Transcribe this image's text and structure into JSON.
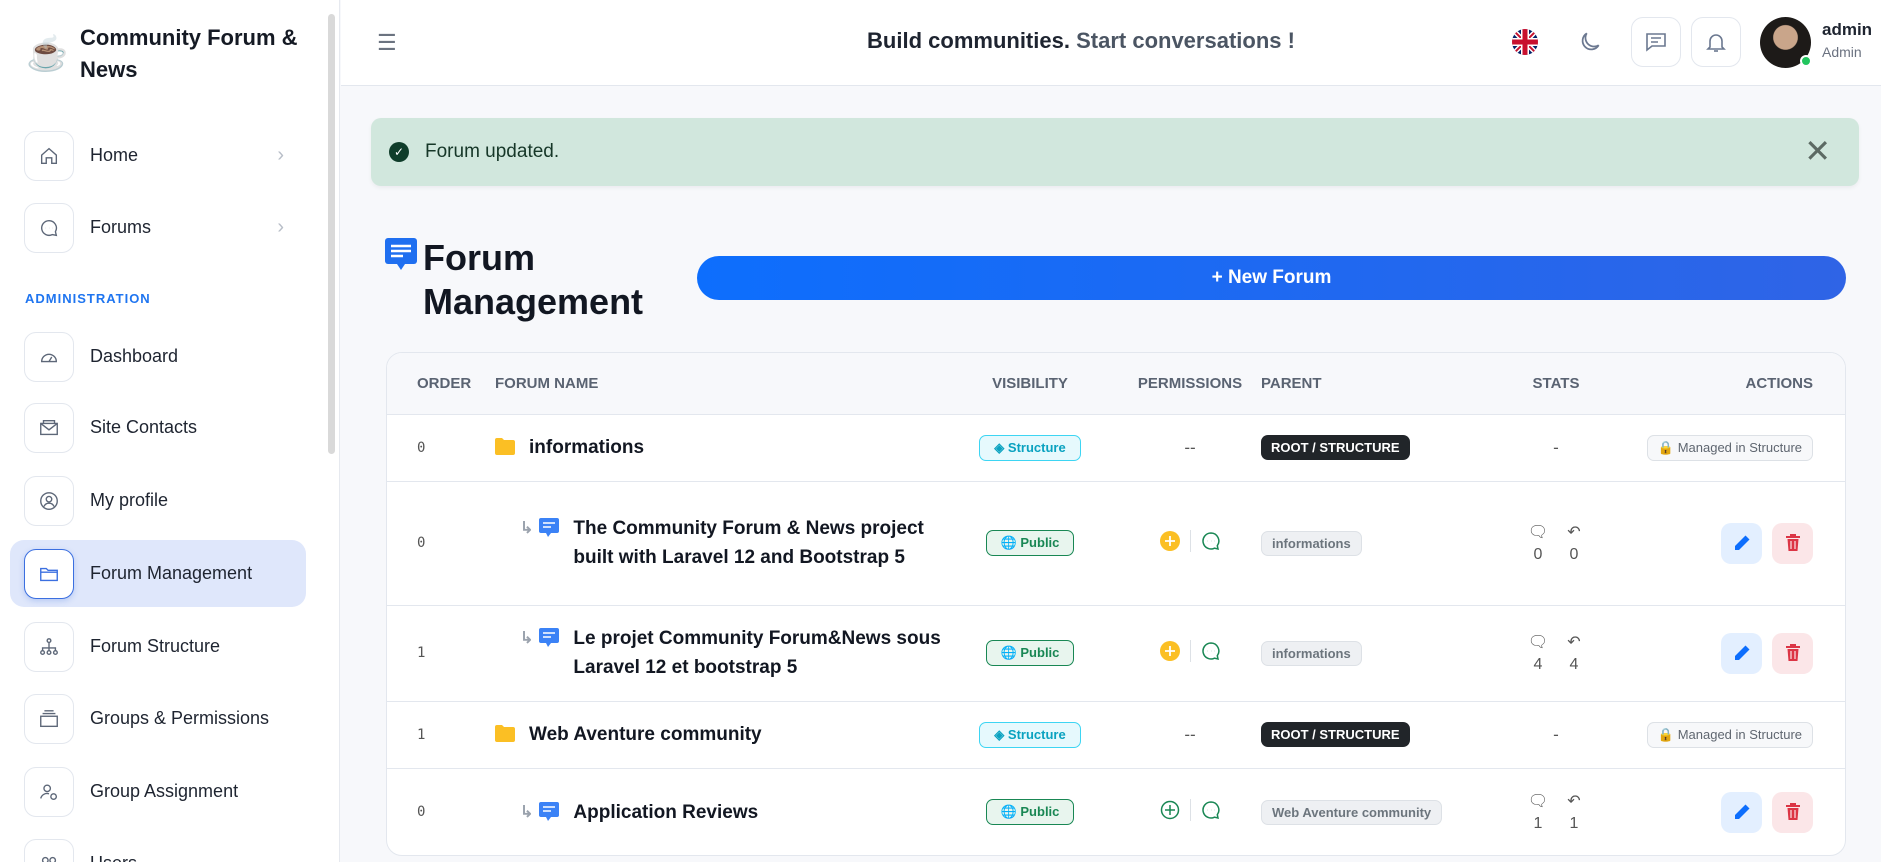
{
  "sidebar": {
    "brand": "Community Forum & News",
    "section_admin": "ADMINISTRATION",
    "items": [
      {
        "label": "Home",
        "icon": "home-icon"
      },
      {
        "label": "Forums",
        "icon": "chat-icon"
      },
      {
        "label": "Dashboard",
        "icon": "gauge-icon"
      },
      {
        "label": "Site Contacts",
        "icon": "envelope-icon"
      },
      {
        "label": "My profile",
        "icon": "user-circle-icon"
      },
      {
        "label": "Forum Management",
        "icon": "folder-icon",
        "active": true
      },
      {
        "label": "Forum Structure",
        "icon": "sitemap-icon"
      },
      {
        "label": "Groups & Permissions",
        "icon": "collection-icon"
      },
      {
        "label": "Group Assignment",
        "icon": "user-gear-icon"
      },
      {
        "label": "Users",
        "icon": "users-icon"
      }
    ]
  },
  "header": {
    "tagline_a": "Build communities.",
    "tagline_b": "Start conversations !",
    "user_name": "admin",
    "user_role": "Admin"
  },
  "alert": {
    "message": "Forum updated."
  },
  "page": {
    "title": "Forum Management",
    "new_button": "+ New Forum"
  },
  "table": {
    "columns": [
      "ORDER",
      "FORUM NAME",
      "VISIBILITY",
      "PERMISSIONS",
      "PARENT",
      "STATS",
      "ACTIONS"
    ],
    "rows": [
      {
        "order": "0",
        "name": "informations",
        "type": "category",
        "visibility": "Structure",
        "permissions": "--",
        "parent": "ROOT / STRUCTURE",
        "stats": "-",
        "action": "Managed in Structure"
      },
      {
        "order": "0",
        "name": "The Community Forum & News project built with Laravel 12 and Bootstrap 5",
        "type": "forum",
        "visibility": "Public",
        "parent": "informations",
        "topics": "0",
        "replies": "0"
      },
      {
        "order": "1",
        "name": "Le projet Community Forum&News sous Laravel 12 et bootstrap 5",
        "type": "forum",
        "visibility": "Public",
        "parent": "informations",
        "topics": "4",
        "replies": "4"
      },
      {
        "order": "1",
        "name": "Web Aventure community",
        "type": "category",
        "visibility": "Structure",
        "permissions": "--",
        "parent": "ROOT / STRUCTURE",
        "stats": "-",
        "action": "Managed in Structure"
      },
      {
        "order": "0",
        "name": "Application Reviews",
        "type": "forum",
        "visibility": "Public",
        "parent": "Web Aventure community",
        "topics": "1",
        "replies": "1"
      }
    ]
  },
  "colors": {
    "accent": "#0d6efd",
    "alert_bg": "#d1e7dd",
    "active_nav": "#dfe7fb"
  }
}
